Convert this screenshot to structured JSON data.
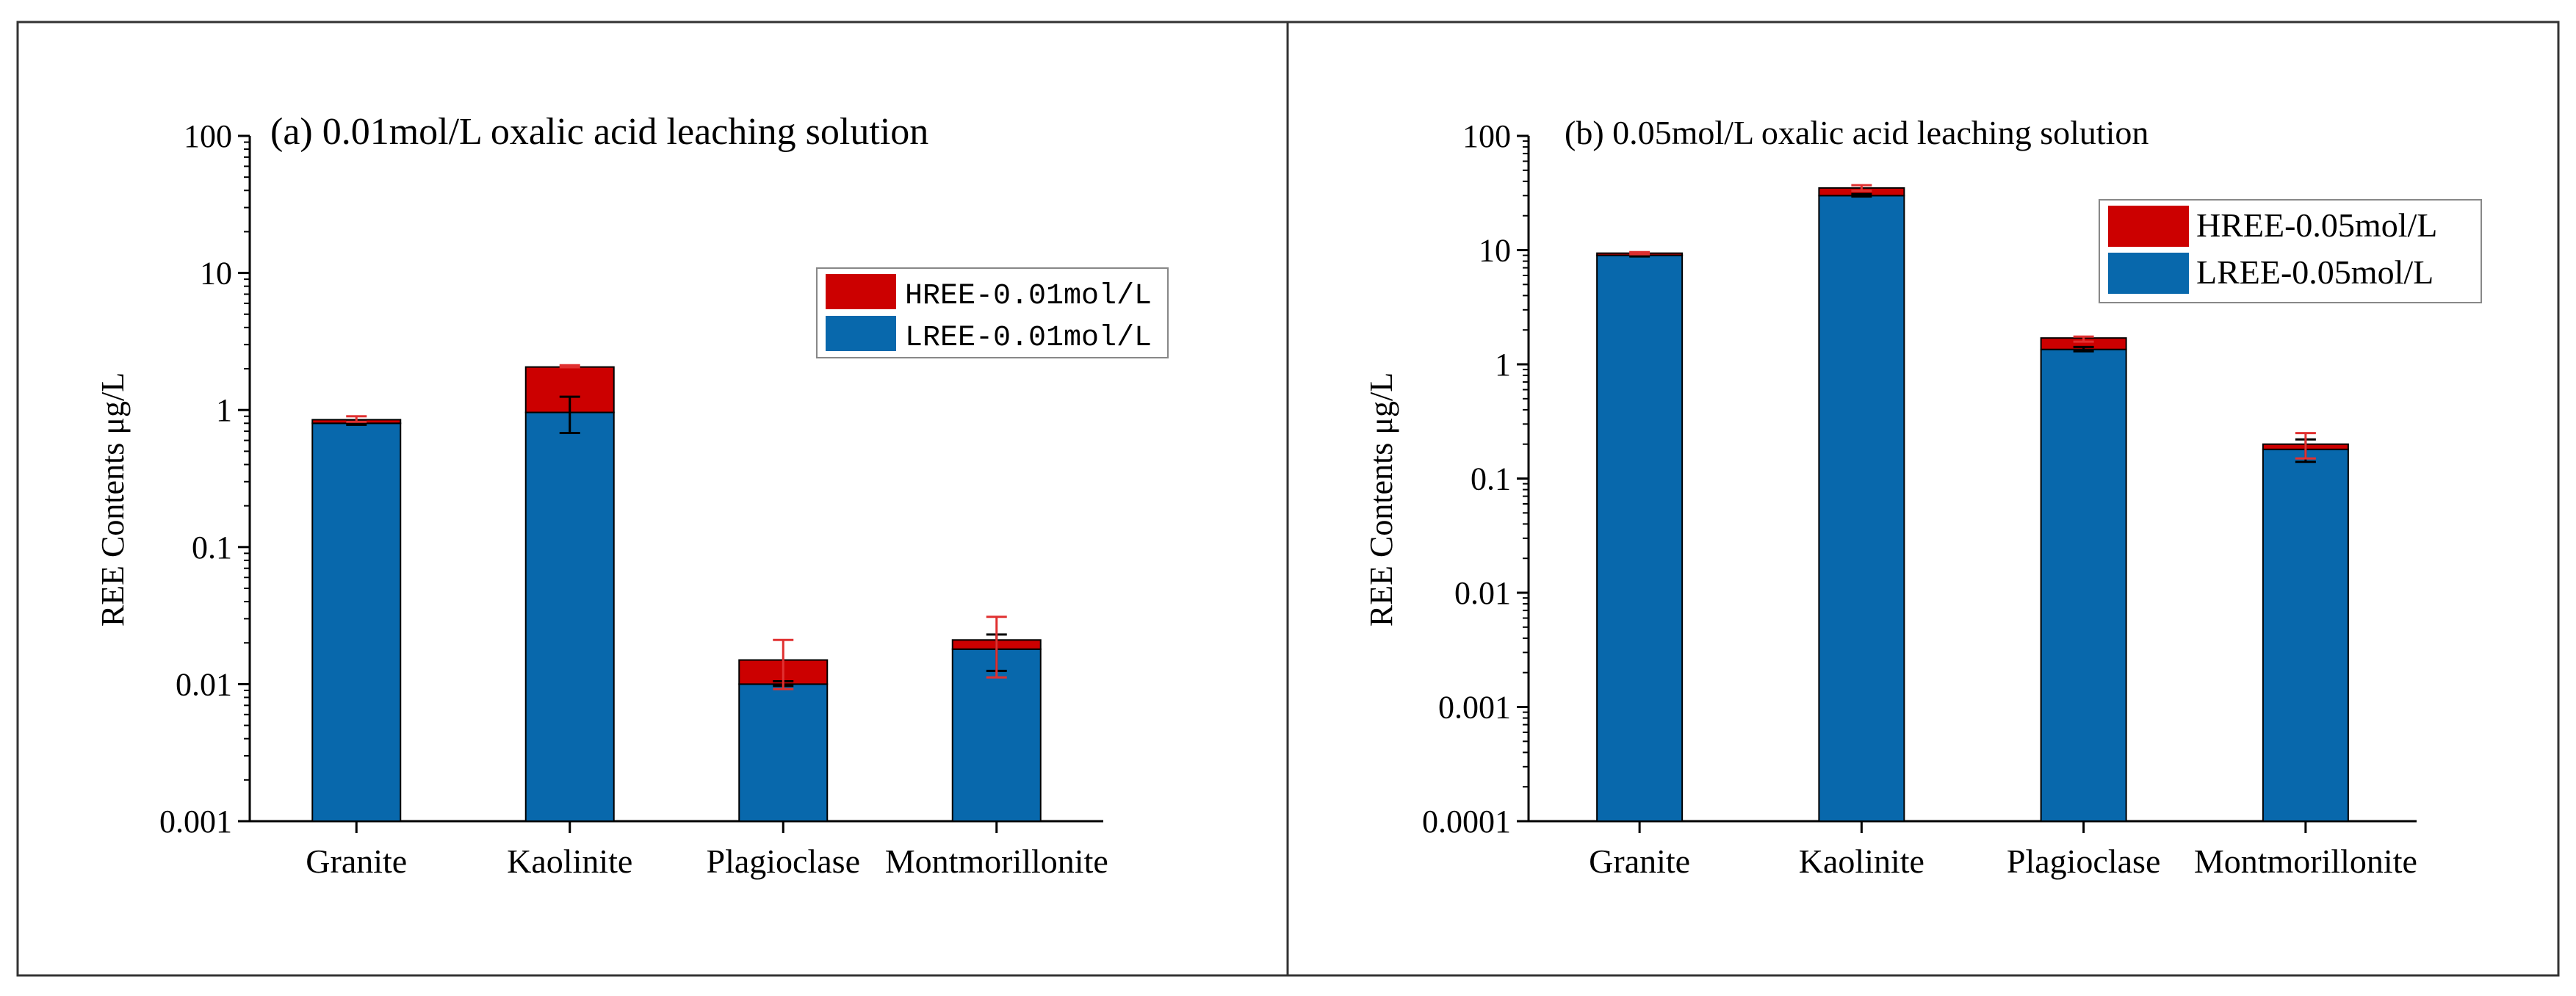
{
  "chart_data": [
    {
      "type": "bar",
      "stacked": true,
      "yscale": "log",
      "title": "(a) 0.01mol/L oxalic acid leaching solution",
      "xlabel": "",
      "ylabel": "REE Contents μg/L",
      "ylim": [
        0.001,
        100
      ],
      "yticks": [
        {
          "value": 0.001,
          "label": "0.001"
        },
        {
          "value": 0.01,
          "label": "0.01"
        },
        {
          "value": 0.1,
          "label": "0.1"
        },
        {
          "value": 1,
          "label": "1"
        },
        {
          "value": 10,
          "label": "10"
        },
        {
          "value": 100,
          "label": "100"
        }
      ],
      "categories": [
        "Granite",
        "Kaolinite",
        "Plagioclase",
        "Montmorillonite"
      ],
      "series": [
        {
          "name": "LREE-0.01mol/L",
          "color": "#0868ac",
          "values": [
            0.8,
            0.96,
            0.01,
            0.018
          ],
          "err_low": [
            0.78,
            0.68,
            0.0097,
            0.0125
          ],
          "err_high": [
            0.83,
            1.25,
            0.0105,
            0.023
          ],
          "err_color": "#000000"
        },
        {
          "name": "HREE-0.01mol/L",
          "color": "#cc0000",
          "values": [
            0.05,
            1.1,
            0.005,
            0.003
          ],
          "err_low": [
            0.82,
            2.05,
            0.0092,
            0.0112
          ],
          "err_high": [
            0.9,
            2.12,
            0.021,
            0.031
          ],
          "err_color": "#e03030"
        }
      ],
      "legend": {
        "placement": "right",
        "entries": [
          "HREE-0.01mol/L",
          "LREE-0.01mol/L"
        ]
      }
    },
    {
      "type": "bar",
      "stacked": true,
      "yscale": "log",
      "title": "(b) 0.05mol/L oxalic acid leaching solution",
      "xlabel": "",
      "ylabel": "REE Contents μg/L",
      "ylim": [
        0.0001,
        100
      ],
      "yticks": [
        {
          "value": 0.0001,
          "label": "0.0001"
        },
        {
          "value": 0.001,
          "label": "0.001"
        },
        {
          "value": 0.01,
          "label": "0.01"
        },
        {
          "value": 0.1,
          "label": "0.1"
        },
        {
          "value": 1,
          "label": "1"
        },
        {
          "value": 10,
          "label": "10"
        },
        {
          "value": 100,
          "label": "100"
        }
      ],
      "categories": [
        "Granite",
        "Kaolinite",
        "Plagioclase",
        "Montmorillonite"
      ],
      "series": [
        {
          "name": "LREE-0.05mol/L",
          "color": "#0868ac",
          "values": [
            9.0,
            30.0,
            1.35,
            0.18
          ],
          "err_low": [
            8.8,
            29.5,
            1.3,
            0.14
          ],
          "err_high": [
            9.2,
            31.0,
            1.42,
            0.22
          ],
          "err_color": "#000000"
        },
        {
          "name": "HREE-0.05mol/L",
          "color": "#cc0000",
          "values": [
            0.4,
            5.0,
            0.35,
            0.02
          ],
          "err_low": [
            9.2,
            33.0,
            1.58,
            0.15
          ],
          "err_high": [
            9.6,
            37.0,
            1.75,
            0.25
          ],
          "err_color": "#e03030"
        }
      ],
      "legend": {
        "placement": "top-right",
        "entries": [
          "HREE-0.05mol/L",
          "LREE-0.05mol/L"
        ]
      }
    }
  ]
}
